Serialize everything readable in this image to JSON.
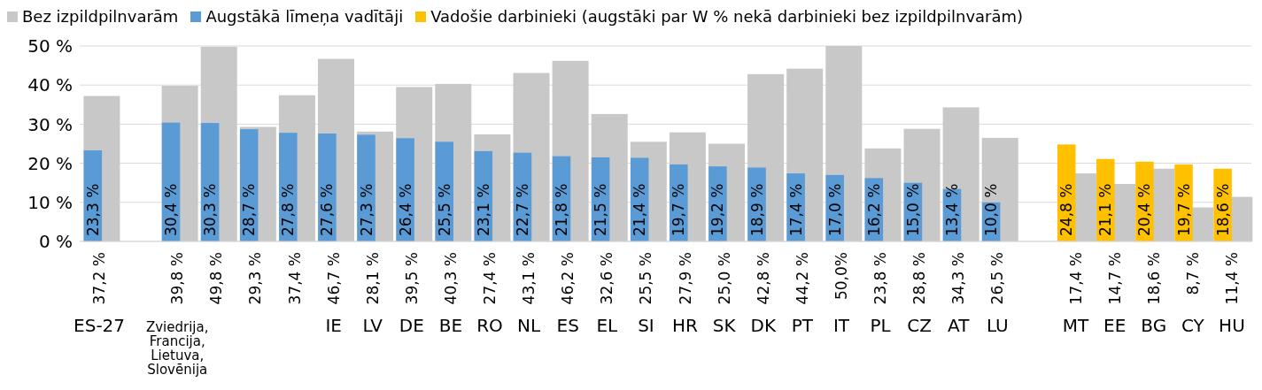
{
  "chart_data": {
    "type": "bar",
    "categories": [
      "ES-27",
      null,
      "Zviedrija, Francija, Lietuva, Slovēnija",
      null,
      null,
      null,
      "IE",
      "LV",
      "DE",
      "BE",
      "RO",
      "NL",
      "ES",
      "EL",
      "SI",
      "HR",
      "SK",
      "DK",
      "PT",
      "IT",
      "PL",
      "CZ",
      "AT",
      "LU",
      null,
      "MT",
      "EE",
      "BG",
      "CY",
      "HU"
    ],
    "series": [
      {
        "name": "Bez izpildpilnvarām",
        "color": "#c8c8c8",
        "values": [
          37.2,
          null,
          39.8,
          49.8,
          29.3,
          37.4,
          46.7,
          28.1,
          39.5,
          40.3,
          27.4,
          43.1,
          46.2,
          32.6,
          25.5,
          27.9,
          25.0,
          42.8,
          44.2,
          50.0,
          23.8,
          28.8,
          34.3,
          26.5,
          null,
          17.4,
          14.7,
          18.6,
          8.7,
          11.4
        ],
        "value_labels": [
          "37,2 %",
          null,
          "39,8 %",
          "49,8 %",
          "29,3 %",
          "37,4 %",
          "46,7 %",
          "28,1 %",
          "39,5 %",
          "40,3 %",
          "27,4 %",
          "43,1 %",
          "46,2 %",
          "32,6 %",
          "25,5 %",
          "27,9 %",
          "25,0 %",
          "42,8 %",
          "44,2 %",
          "50,0%",
          "23,8 %",
          "28,8 %",
          "34,3 %",
          "26,5 %",
          null,
          "17,4 %",
          "14,7 %",
          "18,6 %",
          "8,7 %",
          "11,4 %"
        ]
      },
      {
        "name": "Augstākā līmeņa vadītāji",
        "color": "#5b9bd5",
        "values": [
          23.3,
          null,
          30.4,
          30.3,
          28.7,
          27.8,
          27.6,
          27.3,
          26.4,
          25.5,
          23.1,
          22.7,
          21.8,
          21.5,
          21.4,
          19.7,
          19.2,
          18.9,
          17.4,
          17.0,
          16.2,
          15.0,
          13.4,
          10.0,
          null,
          null,
          null,
          null,
          null,
          null
        ],
        "value_labels": [
          "23,3 %",
          null,
          "30,4 %",
          "30,3 %",
          "28,7 %",
          "27,8 %",
          "27,6 %",
          "27,3 %",
          "26,4 %",
          "25,5 %",
          "23,1 %",
          "22,7 %",
          "21,8 %",
          "21,5 %",
          "21,4 %",
          "19,7 %",
          "19,2 %",
          "18,9 %",
          "17,4 %",
          "17,0 %",
          "16,2 %",
          "15,0 %",
          "13,4 %",
          "10,0 %",
          null,
          null,
          null,
          null,
          null,
          null
        ]
      },
      {
        "name": "Vadošie darbinieki (augstāki par W % nekā darbinieki bez izpildpilnvarām)",
        "color": "#ffc000",
        "values": [
          null,
          null,
          null,
          null,
          null,
          null,
          null,
          null,
          null,
          null,
          null,
          null,
          null,
          null,
          null,
          null,
          null,
          null,
          null,
          null,
          null,
          null,
          null,
          null,
          null,
          24.8,
          21.1,
          20.4,
          19.7,
          18.6
        ],
        "value_labels": [
          null,
          null,
          null,
          null,
          null,
          null,
          null,
          null,
          null,
          null,
          null,
          null,
          null,
          null,
          null,
          null,
          null,
          null,
          null,
          null,
          null,
          null,
          null,
          null,
          null,
          "24,8 %",
          "21,1 %",
          "20,4 %",
          "19,7 %",
          "18,6 %"
        ]
      }
    ],
    "ylim": [
      0,
      50
    ],
    "yticks": [
      {
        "value": 0,
        "label": "0 %"
      },
      {
        "value": 10,
        "label": "10 %"
      },
      {
        "value": 20,
        "label": "20 %"
      },
      {
        "value": 30,
        "label": "30 %"
      },
      {
        "value": 40,
        "label": "40 %"
      },
      {
        "value": 50,
        "label": "50 %"
      }
    ],
    "grid": "y",
    "legend": "top left"
  }
}
